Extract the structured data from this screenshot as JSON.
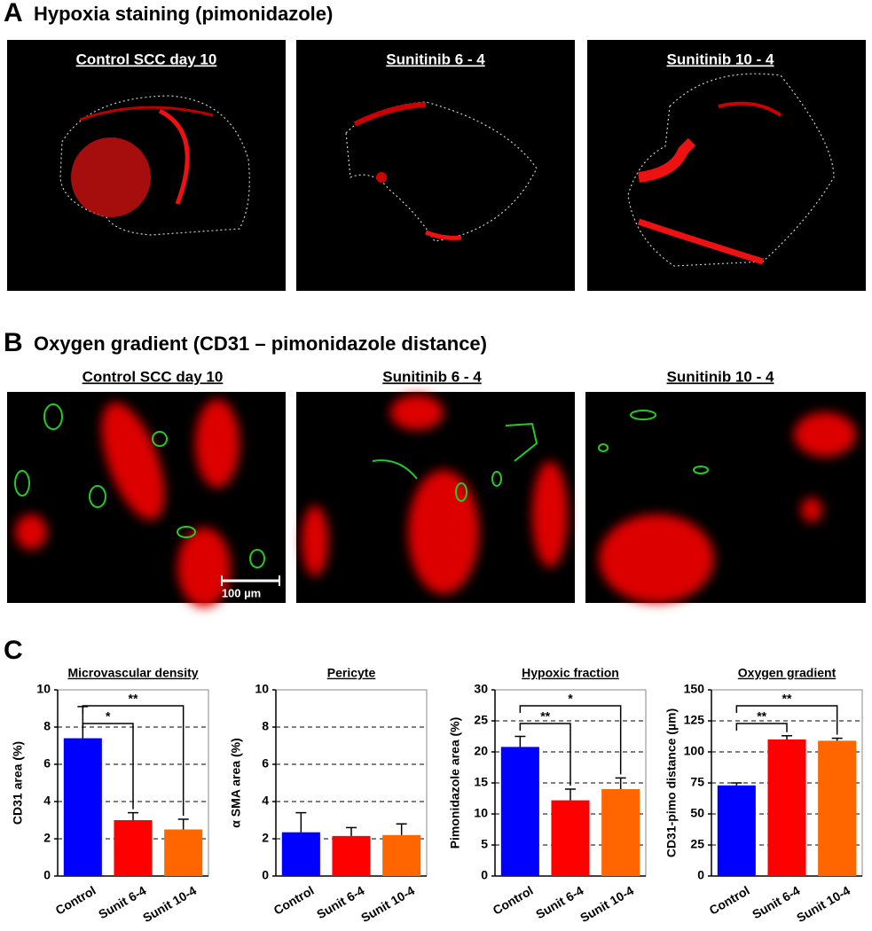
{
  "panel_a": {
    "letter": "A",
    "title": "Hypoxia staining (pimonidazole)",
    "captions": [
      "Control SCC day 10",
      "Sunitinib 6 - 4",
      "Sunitinib 10 - 4"
    ]
  },
  "panel_b": {
    "letter": "B",
    "title": "Oxygen gradient (CD31 – pimonidazole distance)",
    "captions": [
      "Control SCC day 10",
      "Sunitinib 6 - 4",
      "Sunitinib 10 - 4"
    ],
    "scale_bar": "100 µm"
  },
  "panel_c": {
    "letter": "C"
  },
  "chart_data": [
    {
      "type": "bar",
      "title": "Microvascular density",
      "y_label": "CD31 area (%)",
      "categories": [
        "Control",
        "Sunit 6-4",
        "Sunit 10-4"
      ],
      "values": [
        7.4,
        3.0,
        2.5
      ],
      "errors": [
        1.7,
        0.4,
        0.55
      ],
      "colors": [
        "#0000ff",
        "#ff0000",
        "#ff6600"
      ],
      "ylim": [
        0,
        10
      ],
      "yticks": [
        0,
        2,
        4,
        6,
        8,
        10
      ],
      "grid": true,
      "annotations": [
        "*",
        "**"
      ]
    },
    {
      "type": "bar",
      "title": "Pericyte",
      "y_label": "α SMA area (%)",
      "categories": [
        "Control",
        "Sunit 6-4",
        "Sunit 10-4"
      ],
      "values": [
        2.35,
        2.15,
        2.2
      ],
      "errors": [
        1.05,
        0.45,
        0.6
      ],
      "colors": [
        "#0000ff",
        "#ff0000",
        "#ff6600"
      ],
      "ylim": [
        0,
        10
      ],
      "yticks": [
        0,
        2,
        4,
        6,
        8,
        10
      ],
      "grid": true,
      "annotations": []
    },
    {
      "type": "bar",
      "title": "Hypoxic fraction",
      "y_label": "Pimonidazole area (%)",
      "categories": [
        "Control",
        "Sunit 6-4",
        "Sunit 10-4"
      ],
      "values": [
        20.8,
        12.2,
        14.0
      ],
      "errors": [
        1.7,
        1.8,
        1.8
      ],
      "colors": [
        "#0000ff",
        "#ff0000",
        "#ff6600"
      ],
      "ylim": [
        0,
        30
      ],
      "yticks": [
        0,
        5,
        10,
        15,
        20,
        25,
        30
      ],
      "grid": true,
      "annotations": [
        "**",
        "*"
      ]
    },
    {
      "type": "bar",
      "title": "Oxygen gradient",
      "y_label": "CD31-pimo distance (µm)",
      "categories": [
        "Control",
        "Sunit 6-4",
        "Sunit 10-4"
      ],
      "values": [
        73,
        110,
        109
      ],
      "errors": [
        2,
        3,
        2
      ],
      "colors": [
        "#0000ff",
        "#ff0000",
        "#ff6600"
      ],
      "ylim": [
        0,
        150
      ],
      "yticks": [
        0,
        25,
        50,
        75,
        100,
        125,
        150
      ],
      "grid": true,
      "annotations": [
        "**",
        "**"
      ]
    }
  ]
}
